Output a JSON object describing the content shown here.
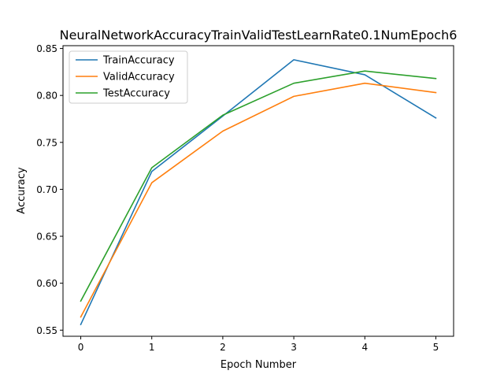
{
  "chart_data": {
    "type": "line",
    "title": "NeuralNetworkAccuracyTrainValidTestLearnRate0.1NumEpoch6",
    "xlabel": "Epoch Number",
    "ylabel": "Accuracy",
    "x": [
      0,
      1,
      2,
      3,
      4,
      5
    ],
    "xlim": [
      -0.25,
      5.25
    ],
    "ylim": [
      0.5435,
      0.853
    ],
    "xticks": [
      0,
      1,
      2,
      3,
      4,
      5
    ],
    "yticks": [
      0.55,
      0.6,
      0.65,
      0.7,
      0.75,
      0.8,
      0.85
    ],
    "ytick_labels": [
      "0.55",
      "0.60",
      "0.65",
      "0.70",
      "0.75",
      "0.80",
      "0.85"
    ],
    "grid": false,
    "legend_position": "top-left",
    "series": [
      {
        "name": "TrainAccuracy",
        "color": "#1f77b4",
        "values": [
          0.556,
          0.719,
          0.778,
          0.838,
          0.822,
          0.776
        ]
      },
      {
        "name": "ValidAccuracy",
        "color": "#ff7f0e",
        "values": [
          0.564,
          0.707,
          0.762,
          0.799,
          0.813,
          0.803
        ]
      },
      {
        "name": "TestAccuracy",
        "color": "#2ca02c",
        "values": [
          0.581,
          0.723,
          0.779,
          0.813,
          0.826,
          0.818
        ]
      }
    ]
  }
}
